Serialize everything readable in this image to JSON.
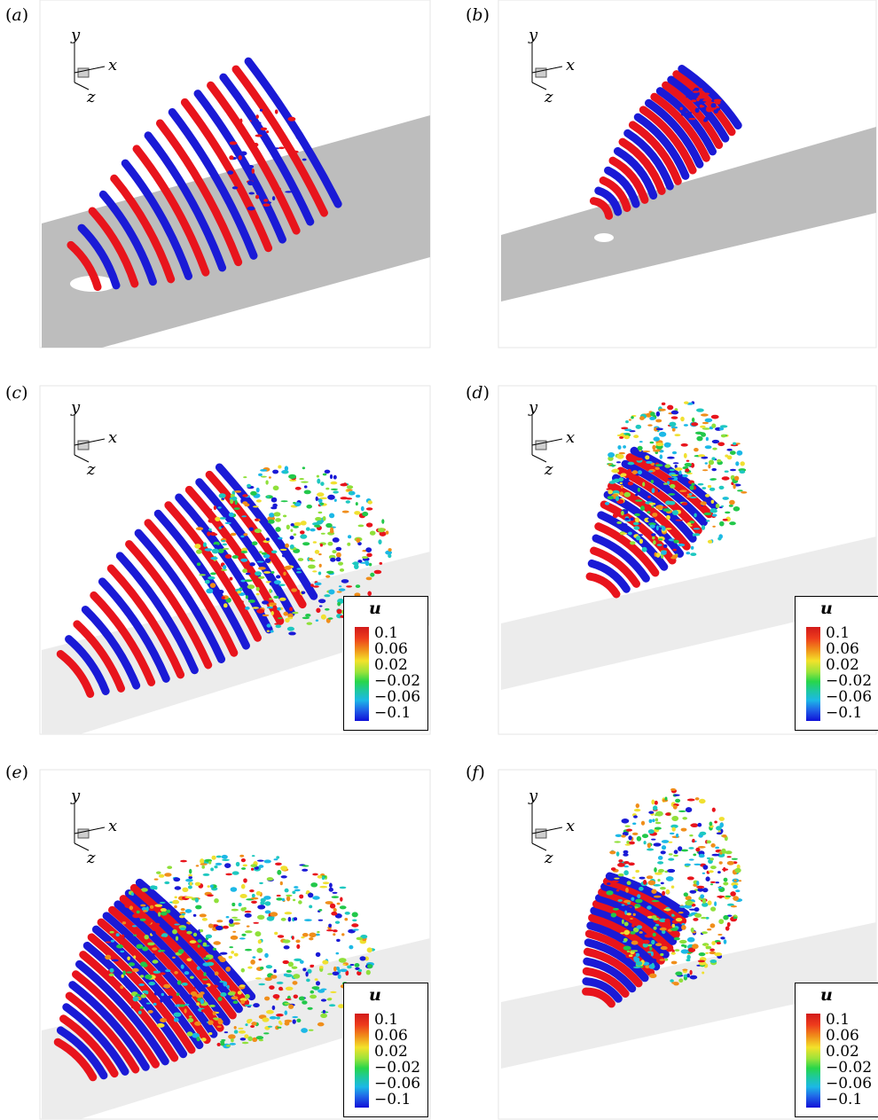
{
  "panels": [
    {
      "id": "a",
      "label_open": "(",
      "label_letter": "a",
      "label_close": ")",
      "has_legend": false
    },
    {
      "id": "b",
      "label_open": "(",
      "label_letter": "b",
      "label_close": ")",
      "has_legend": false
    },
    {
      "id": "c",
      "label_open": "(",
      "label_letter": "c",
      "label_close": ")",
      "has_legend": true
    },
    {
      "id": "d",
      "label_open": "(",
      "label_letter": "d",
      "label_close": ")",
      "has_legend": true
    },
    {
      "id": "e",
      "label_open": "(",
      "label_letter": "e",
      "label_close": ")",
      "has_legend": true
    },
    {
      "id": "f",
      "label_open": "(",
      "label_letter": "f",
      "label_close": ")",
      "has_legend": true
    }
  ],
  "axes": {
    "x": "x",
    "y": "y",
    "z": "z"
  },
  "legend": {
    "title": "u",
    "ticks": [
      "0.1",
      "0.06",
      "0.02",
      "−0.02",
      "−0.06",
      "−0.1"
    ]
  },
  "colors": {
    "red": "#e8141c",
    "blue": "#1a1ad6",
    "wall": "#bdbdbd",
    "wall_light": "#ececec"
  }
}
